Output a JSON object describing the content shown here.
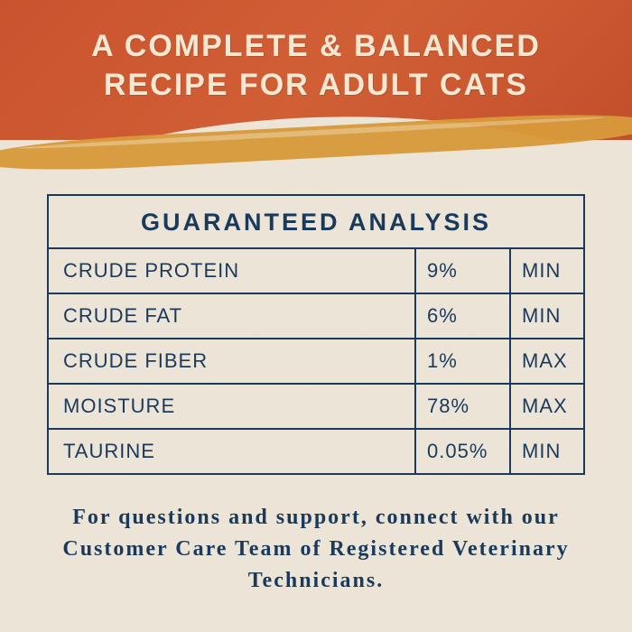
{
  "colors": {
    "header_bg": "#c9532e",
    "mustard": "#d99a3a",
    "paper_bg": "#ece4d7",
    "navy": "#1a3a5c",
    "headline_text": "#f5e8d3"
  },
  "headline": {
    "line1": "A COMPLETE & BALANCED",
    "line2": "RECIPE FOR ADULT CATS"
  },
  "table": {
    "title": "GUARANTEED ANALYSIS",
    "rows": [
      {
        "nutrient": "CRUDE PROTEIN",
        "value": "9%",
        "bound": "MIN"
      },
      {
        "nutrient": "CRUDE FAT",
        "value": "6%",
        "bound": "MIN"
      },
      {
        "nutrient": "CRUDE FIBER",
        "value": "1%",
        "bound": "MAX"
      },
      {
        "nutrient": "MOISTURE",
        "value": "78%",
        "bound": "MAX"
      },
      {
        "nutrient": "TAURINE",
        "value": "0.05%",
        "bound": "MIN"
      }
    ]
  },
  "footer": "For questions and support, connect with our Customer Care Team of Registered Veterinary Technicians."
}
